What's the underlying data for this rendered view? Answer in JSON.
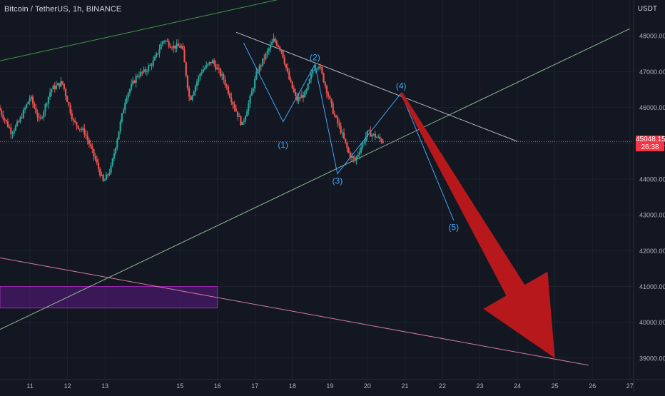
{
  "header": {
    "symbol_title": "Bitcoin / TetherUS, 1h, BINANCE",
    "currency": "USDT"
  },
  "price_tag": {
    "price": "45048.15",
    "countdown": "26:38"
  },
  "colors": {
    "background": "#131722",
    "grid": "#1e222d",
    "up_candle": "#26a69a",
    "down_candle": "#ef5350",
    "channel_upper": "#4caf50",
    "channel_lower": "#a5d6a7",
    "resistance": "#d1d4dc",
    "support_long": "#f48fb1",
    "wave_line": "#42a5f5",
    "arrow": "#c0181c",
    "zone_fill": "#6a1b9a",
    "zone_border": "#9c27b0",
    "price_line": "#ef5350",
    "axis_text": "#b2b5be"
  },
  "chart_data": {
    "type": "candlestick",
    "title": "Bitcoin / TetherUS, 1h, BINANCE",
    "xlabel": "",
    "ylabel": "",
    "ylim": [
      38400,
      49000
    ],
    "xlim": [
      10.2,
      27.1
    ],
    "x_ticks": [
      "11",
      "12",
      "13",
      "15",
      "16",
      "17",
      "18",
      "19",
      "20",
      "21",
      "22",
      "23",
      "24",
      "25",
      "26",
      "27"
    ],
    "x_tick_values": [
      11,
      12,
      13,
      15,
      16,
      17,
      18,
      19,
      20,
      21,
      22,
      23,
      24,
      25,
      26,
      27
    ],
    "y_ticks": [
      "39000.00",
      "40000.00",
      "41000.00",
      "42000.00",
      "43000.00",
      "44000.00",
      "45000.00",
      "46000.00",
      "47000.00",
      "48000.00"
    ],
    "y_tick_values": [
      39000,
      40000,
      41000,
      42000,
      43000,
      44000,
      45000,
      46000,
      47000,
      48000
    ],
    "price_anchors": [
      [
        10.2,
        46000
      ],
      [
        10.55,
        45300
      ],
      [
        10.75,
        45600
      ],
      [
        11.05,
        46300
      ],
      [
        11.3,
        45600
      ],
      [
        11.6,
        46500
      ],
      [
        11.9,
        46700
      ],
      [
        12.2,
        45600
      ],
      [
        12.5,
        45300
      ],
      [
        12.8,
        44500
      ],
      [
        13.0,
        43900
      ],
      [
        13.2,
        44300
      ],
      [
        13.4,
        45300
      ],
      [
        13.6,
        46300
      ],
      [
        13.9,
        46900
      ],
      [
        14.1,
        47000
      ],
      [
        14.35,
        47300
      ],
      [
        14.6,
        47900
      ],
      [
        14.85,
        47700
      ],
      [
        15.1,
        47700
      ],
      [
        15.3,
        46200
      ],
      [
        15.6,
        47000
      ],
      [
        15.9,
        47300
      ],
      [
        16.2,
        46800
      ],
      [
        16.5,
        46000
      ],
      [
        16.7,
        45500
      ],
      [
        16.9,
        46200
      ],
      [
        17.1,
        47000
      ],
      [
        17.35,
        47500
      ],
      [
        17.55,
        47900
      ],
      [
        17.75,
        47600
      ],
      [
        17.95,
        46800
      ],
      [
        18.15,
        46200
      ],
      [
        18.4,
        46400
      ],
      [
        18.6,
        47100
      ],
      [
        18.75,
        47200
      ],
      [
        18.95,
        46500
      ],
      [
        19.15,
        45800
      ],
      [
        19.35,
        45300
      ],
      [
        19.55,
        44700
      ],
      [
        19.7,
        44500
      ],
      [
        19.85,
        44850
      ],
      [
        20.05,
        45300
      ],
      [
        20.25,
        45200
      ],
      [
        20.45,
        45050
      ]
    ],
    "current_price": 45048.15,
    "waves": [
      {
        "label": "(1)",
        "x": 17.75,
        "y": 45150
      },
      {
        "label": "(2)",
        "x": 18.6,
        "y": 47200
      },
      {
        "label": "(3)",
        "x": 19.2,
        "y": 44150
      },
      {
        "label": "(4)",
        "x": 20.9,
        "y": 46400
      },
      {
        "label": "(5)",
        "x": 22.3,
        "y": 42850
      }
    ],
    "wave_path": [
      [
        16.7,
        47800
      ],
      [
        17.75,
        45600
      ],
      [
        18.6,
        47200
      ],
      [
        19.2,
        44150
      ],
      [
        20.9,
        46400
      ],
      [
        22.3,
        42850
      ]
    ],
    "trendlines": [
      {
        "name": "channel-upper",
        "from": [
          10.2,
          47300
        ],
        "to": [
          18.0,
          49100
        ]
      },
      {
        "name": "channel-lower",
        "from": [
          10.2,
          39800
        ],
        "to": [
          27.0,
          48200
        ]
      },
      {
        "name": "resistance",
        "from": [
          16.5,
          48100
        ],
        "to": [
          24.0,
          45050
        ]
      },
      {
        "name": "support-long",
        "from": [
          10.2,
          41800
        ],
        "to": [
          25.9,
          38800
        ]
      }
    ],
    "zone": {
      "x": [
        10.2,
        16.0
      ],
      "y": [
        40400,
        41000
      ]
    },
    "arrow": {
      "from": [
        20.9,
        46400
      ],
      "to": [
        25.0,
        39000
      ]
    }
  }
}
